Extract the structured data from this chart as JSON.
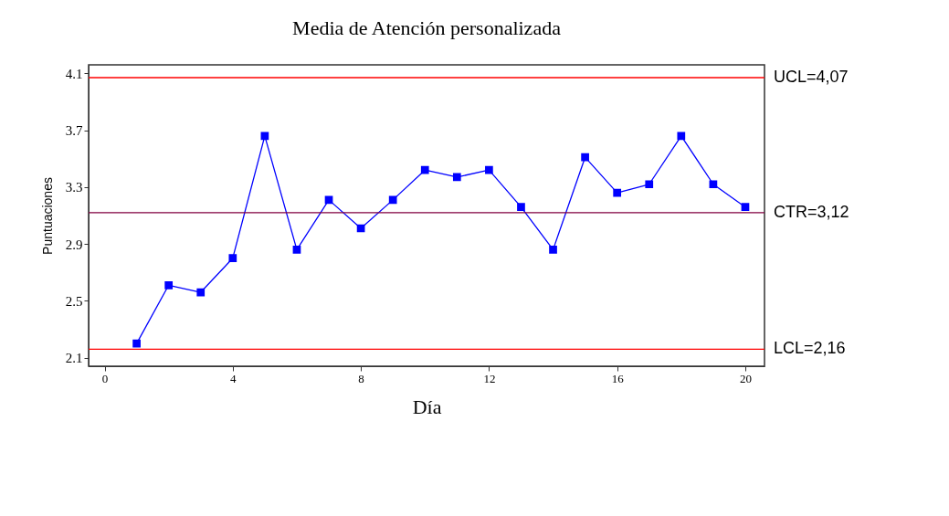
{
  "chart_data": {
    "type": "line",
    "title": "Media de Atención personalizada",
    "xlabel": "Día",
    "ylabel": "Puntuaciones",
    "x": [
      1,
      2,
      3,
      4,
      5,
      6,
      7,
      8,
      9,
      10,
      11,
      12,
      13,
      14,
      15,
      16,
      17,
      18,
      19,
      20
    ],
    "series": [
      {
        "color": "#0000ff",
        "values": [
          2.2,
          2.61,
          2.56,
          2.8,
          3.66,
          2.86,
          3.21,
          3.01,
          3.21,
          3.42,
          3.37,
          3.42,
          3.16,
          2.86,
          3.51,
          3.26,
          3.32,
          3.66,
          3.32,
          3.16
        ]
      }
    ],
    "xlim": [
      -0.5,
      20.6
    ],
    "xticks": [
      0,
      4,
      8,
      12,
      16,
      20
    ],
    "ylim": [
      2.04,
      4.16
    ],
    "yticks": [
      2.1,
      2.5,
      2.9,
      3.3,
      3.7,
      4.1
    ],
    "marker": "square",
    "line_style": "solid",
    "grid": false,
    "ref_lines": [
      {
        "axis": "y",
        "value": 4.07,
        "label": "UCL=4,07",
        "color": "#ff0000"
      },
      {
        "axis": "y",
        "value": 3.12,
        "label": "CTR=3,12",
        "color": "#800040"
      },
      {
        "axis": "y",
        "value": 2.16,
        "label": "LCL=2,16",
        "color": "#ff0000"
      }
    ]
  }
}
